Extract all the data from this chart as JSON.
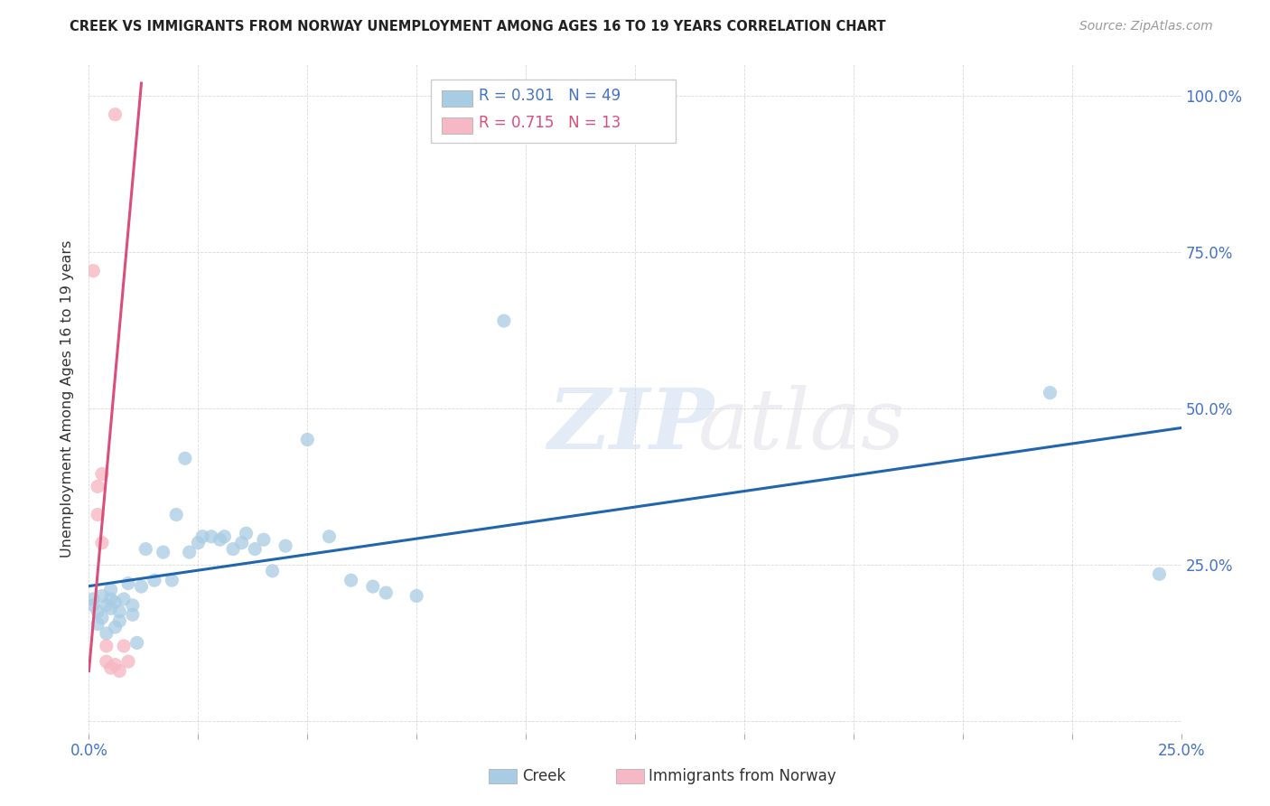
{
  "title": "CREEK VS IMMIGRANTS FROM NORWAY UNEMPLOYMENT AMONG AGES 16 TO 19 YEARS CORRELATION CHART",
  "source": "Source: ZipAtlas.com",
  "ylabel": "Unemployment Among Ages 16 to 19 years",
  "xlim": [
    0.0,
    0.25
  ],
  "ylim": [
    -0.02,
    1.05
  ],
  "ytick_positions": [
    0.0,
    0.25,
    0.5,
    0.75,
    1.0
  ],
  "ytick_labels": [
    "",
    "25.0%",
    "50.0%",
    "75.0%",
    "100.0%"
  ],
  "creek_color": "#a8cce4",
  "norway_color": "#f5b8c4",
  "creek_line_color": "#2166ac",
  "norway_line_color": "#d94f7a",
  "legend_r_creek": "R = 0.301",
  "legend_n_creek": "N = 49",
  "legend_r_norway": "R = 0.715",
  "legend_n_norway": "N = 13",
  "watermark_zip": "ZIP",
  "watermark_atlas": "atlas",
  "creek_x": [
    0.001,
    0.001,
    0.002,
    0.002,
    0.003,
    0.003,
    0.004,
    0.004,
    0.005,
    0.005,
    0.005,
    0.006,
    0.006,
    0.007,
    0.007,
    0.008,
    0.009,
    0.01,
    0.01,
    0.011,
    0.012,
    0.013,
    0.015,
    0.017,
    0.019,
    0.02,
    0.022,
    0.023,
    0.025,
    0.026,
    0.028,
    0.03,
    0.031,
    0.033,
    0.035,
    0.036,
    0.038,
    0.04,
    0.042,
    0.045,
    0.05,
    0.055,
    0.06,
    0.065,
    0.068,
    0.075,
    0.095,
    0.22,
    0.245
  ],
  "creek_y": [
    0.195,
    0.185,
    0.175,
    0.155,
    0.2,
    0.165,
    0.185,
    0.14,
    0.21,
    0.18,
    0.195,
    0.15,
    0.19,
    0.175,
    0.16,
    0.195,
    0.22,
    0.17,
    0.185,
    0.125,
    0.215,
    0.275,
    0.225,
    0.27,
    0.225,
    0.33,
    0.42,
    0.27,
    0.285,
    0.295,
    0.295,
    0.29,
    0.295,
    0.275,
    0.285,
    0.3,
    0.275,
    0.29,
    0.24,
    0.28,
    0.45,
    0.295,
    0.225,
    0.215,
    0.205,
    0.2,
    0.64,
    0.525,
    0.235
  ],
  "norway_x": [
    0.001,
    0.002,
    0.002,
    0.003,
    0.003,
    0.004,
    0.004,
    0.005,
    0.006,
    0.006,
    0.007,
    0.008,
    0.009
  ],
  "norway_y": [
    0.72,
    0.375,
    0.33,
    0.395,
    0.285,
    0.12,
    0.095,
    0.085,
    0.97,
    0.09,
    0.08,
    0.12,
    0.095
  ],
  "norway_line_x": [
    0.0,
    0.012
  ],
  "norway_line_y": [
    0.08,
    1.02
  ]
}
